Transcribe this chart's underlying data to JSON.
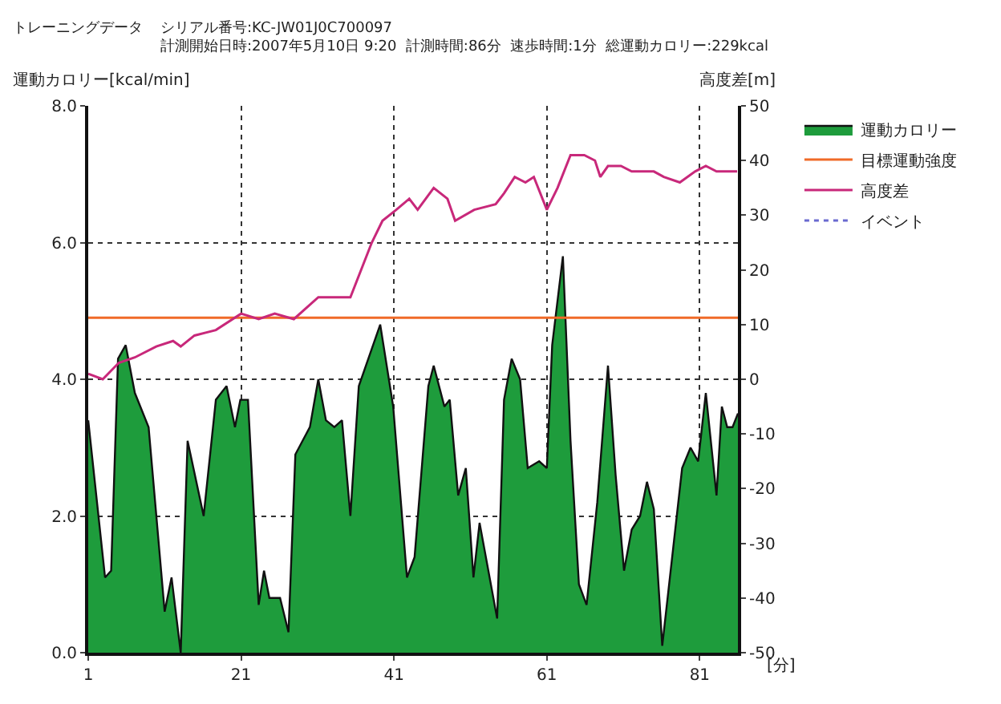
{
  "chart_data": {
    "type": "area",
    "title": "トレーニングデータ",
    "subtitle": "シリアル番号:KC-JW01J0C700097\n計測開始日時:2007年5月10日 9:20  計測時間:86分  速歩時間:1分  総運動カロリー:229kcal",
    "xlabel": "[分]",
    "ylabel": "運動カロリー[kcal/min]",
    "y2label": "高度差[m]",
    "xlim": [
      1,
      86
    ],
    "xticks": [
      1,
      21,
      41,
      61,
      81
    ],
    "ylim": [
      0,
      8
    ],
    "yticks": [
      {
        "value": 0,
        "label": "0.0"
      },
      {
        "value": 2,
        "label": "2.0"
      },
      {
        "value": 4,
        "label": "4.0"
      },
      {
        "value": 6,
        "label": "6.0"
      },
      {
        "value": 8,
        "label": "8.0"
      }
    ],
    "y2lim": [
      -50,
      50
    ],
    "y2ticks": [
      -50,
      -40,
      -30,
      -20,
      -10,
      0,
      10,
      20,
      30,
      40,
      50
    ],
    "grid": true,
    "legend": "top right",
    "series": [
      {
        "name": "運動カロリー",
        "color": "#1e9c3c",
        "x": [
          1,
          3.2,
          4,
          4.9,
          5.9,
          7.1,
          8.9,
          11,
          11.9,
          13.1,
          14,
          16.1,
          17.7,
          19.1,
          20.2,
          20.9,
          21.9,
          23.3,
          24,
          24.7,
          26.1,
          27.2,
          28.1,
          30,
          31.1,
          32.1,
          33.2,
          34.2,
          35.3,
          36.4,
          39.2,
          40.9,
          42.7,
          43.7,
          45.5,
          46.2,
          47.6,
          48.3,
          49.4,
          50.4,
          51.4,
          52.2,
          54.5,
          55.4,
          56.4,
          57.5,
          58.5,
          60,
          61,
          61.7,
          63.1,
          64.1,
          65.2,
          66.2,
          67.6,
          69,
          70,
          71.1,
          72.1,
          73.2,
          74.1,
          75,
          76.1,
          78.7,
          79.8,
          80.8,
          81.8,
          83.2,
          83.9,
          84.6,
          85.3,
          86
        ],
        "values": [
          3.4,
          1.1,
          1.2,
          4.3,
          4.5,
          3.8,
          3.3,
          0.6,
          1.1,
          0.0,
          3.1,
          2.0,
          3.7,
          3.9,
          3.3,
          3.7,
          3.7,
          0.7,
          1.2,
          0.8,
          0.8,
          0.3,
          2.9,
          3.3,
          4.0,
          3.4,
          3.3,
          3.4,
          2.0,
          3.9,
          4.8,
          3.6,
          1.1,
          1.4,
          3.9,
          4.2,
          3.6,
          3.7,
          2.3,
          2.7,
          1.1,
          1.9,
          0.5,
          3.7,
          4.3,
          4.0,
          2.7,
          2.8,
          2.7,
          4.5,
          5.8,
          3.1,
          1.0,
          0.7,
          2.2,
          4.2,
          2.6,
          1.2,
          1.8,
          2.0,
          2.5,
          2.1,
          0.1,
          2.7,
          3.0,
          2.8,
          3.8,
          2.3,
          3.6,
          3.3,
          3.3,
          3.5
        ]
      },
      {
        "name": "目標運動強度",
        "type": "line",
        "color": "#f06a28",
        "x": [
          1,
          86
        ],
        "values": [
          4.9,
          4.9
        ]
      },
      {
        "name": "高度差",
        "type": "line",
        "axis": "y2",
        "color": "#c8287a",
        "x": [
          1,
          2.9,
          5,
          7.1,
          9.9,
          12.1,
          13.1,
          14.9,
          17.7,
          21,
          23.3,
          25.4,
          27.9,
          31.1,
          32.1,
          35.3,
          38.1,
          39.5,
          41.3,
          43,
          44.1,
          46.2,
          48,
          49,
          51.5,
          54.3,
          55.4,
          56.8,
          58.2,
          59.3,
          61,
          62.4,
          64.1,
          65.9,
          67.3,
          68,
          69,
          70.7,
          72.1,
          75,
          76.3,
          78.4,
          80.4,
          81.8,
          83.2,
          85.9
        ],
        "values": [
          1,
          0,
          3,
          4,
          6,
          7,
          6,
          8,
          9,
          12,
          11,
          12,
          11,
          15,
          15,
          15,
          25,
          29,
          31,
          33,
          31,
          35,
          33,
          29,
          31,
          32,
          34,
          37,
          36,
          37,
          31,
          35,
          41,
          41,
          40,
          37,
          39,
          39,
          38,
          38,
          37,
          36,
          38,
          39,
          38,
          38
        ]
      },
      {
        "name": "イベント",
        "type": "line",
        "color": "#6a6ad0",
        "line_style": "dotted"
      }
    ]
  }
}
